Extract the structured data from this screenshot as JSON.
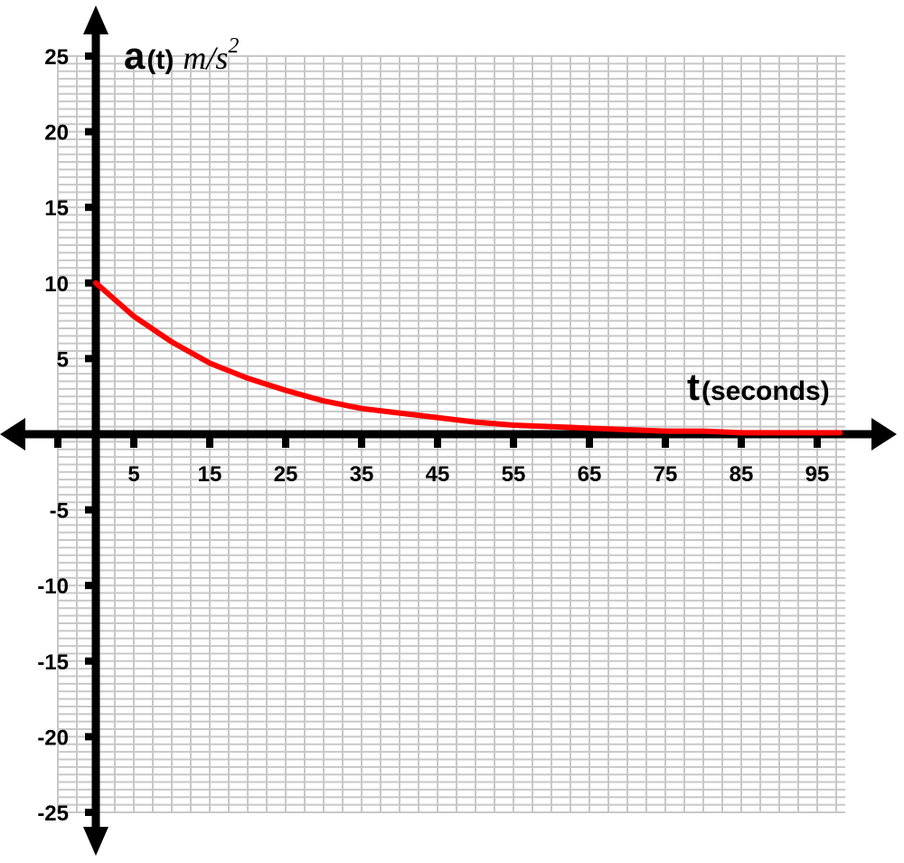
{
  "chart_data": {
    "type": "line",
    "x": [
      0,
      5,
      10,
      15,
      20,
      25,
      30,
      35,
      40,
      45,
      50,
      55,
      60,
      65,
      70,
      75,
      80,
      85,
      90,
      95,
      98
    ],
    "series": [
      {
        "values": [
          10,
          7.8,
          6.1,
          4.7,
          3.7,
          2.9,
          2.2,
          1.7,
          1.4,
          1.1,
          0.8,
          0.6,
          0.5,
          0.4,
          0.3,
          0.2,
          0.2,
          0.1,
          0.1,
          0.1,
          0.1
        ],
        "color": "#ff0000"
      }
    ],
    "xlim": [
      -5,
      100
    ],
    "ylim": [
      -25,
      25
    ],
    "xticks": [
      5,
      15,
      25,
      35,
      45,
      55,
      65,
      75,
      85,
      95
    ],
    "yticks": [
      25,
      20,
      15,
      10,
      5,
      -5,
      -10,
      -15,
      -20,
      -25
    ],
    "xlabel_main": "t",
    "xlabel_sub": "(seconds)",
    "ylabel_main": "a",
    "ylabel_sub": "(t)",
    "ylabel_unit": "m/s",
    "ylabel_unit_exp": "2",
    "grid": true,
    "grid_color": "#c8c8c8",
    "axis_color": "#000000"
  }
}
